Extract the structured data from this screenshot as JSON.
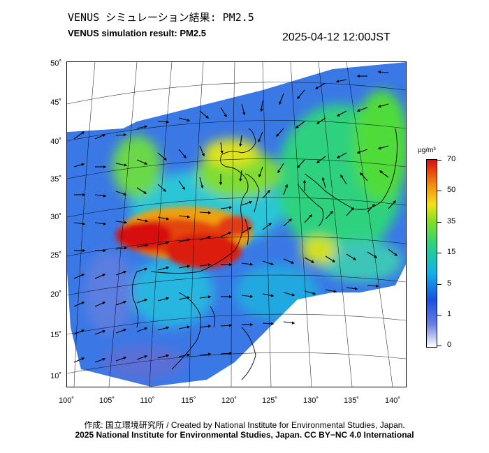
{
  "header": {
    "title_ja": "VENUS シミュレーション結果: PM2.5",
    "title_en": "VENUS simulation result: PM2.5",
    "timestamp": "2025-04-12 12:00JST"
  },
  "map": {
    "region": "East Asia",
    "variable": "PM2.5",
    "lat_labels": [
      "50˚",
      "45˚",
      "40˚",
      "35˚",
      "30˚",
      "25˚",
      "20˚",
      "15˚",
      "10˚"
    ],
    "lon_labels": [
      "100˚",
      "105˚",
      "110˚",
      "115˚",
      "120˚",
      "125˚",
      "130˚",
      "135˚",
      "140˚"
    ],
    "overlay": "wind-arrows"
  },
  "colorbar": {
    "unit": "μg/m³",
    "ticks": [
      "70",
      "50",
      "35",
      "15",
      "5",
      "1",
      "0"
    ],
    "colors": [
      "#ffffff",
      "#1b4fe0",
      "#12b4e6",
      "#2fd27e",
      "#8be01e",
      "#f4e01a",
      "#f08a10",
      "#d81010"
    ]
  },
  "footer": {
    "credit_line1": "作成: 国立環境研究所 / Created by National Institute for Environmental Studies, Japan.",
    "credit_line2": "2025 National Institute for Environmental Studies, Japan. CC BY−NC 4.0 International"
  }
}
